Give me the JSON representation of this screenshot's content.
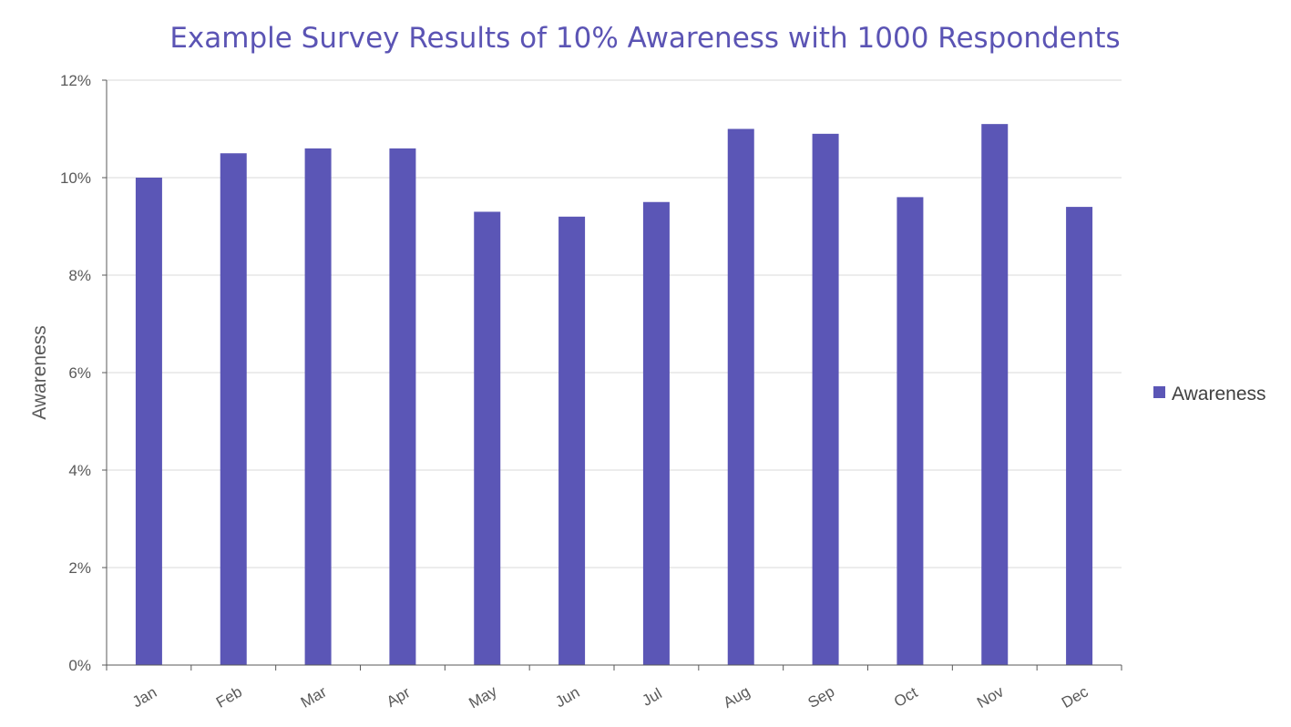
{
  "chart_data": {
    "type": "bar",
    "title": "Example Survey Results of 10% Awareness with 1000 Respondents",
    "xlabel": "",
    "ylabel": "Awareness",
    "categories": [
      "Jan",
      "Feb",
      "Mar",
      "Apr",
      "May",
      "Jun",
      "Jul",
      "Aug",
      "Sep",
      "Oct",
      "Nov",
      "Dec"
    ],
    "series": [
      {
        "name": "Awareness",
        "color": "#5b56b6",
        "values": [
          10.0,
          10.5,
          10.6,
          10.6,
          9.3,
          9.2,
          9.5,
          11.0,
          10.9,
          9.6,
          11.1,
          9.4
        ]
      }
    ],
    "ylim": [
      0,
      12
    ],
    "y_ticks": [
      0,
      2,
      4,
      6,
      8,
      10,
      12
    ],
    "y_tick_labels": [
      "0%",
      "2%",
      "4%",
      "6%",
      "8%",
      "10%",
      "12%"
    ],
    "grid": true,
    "legend_position": "right",
    "colors": {
      "title": "#5b54b4",
      "gridline": "#d9d9d9",
      "axis": "#595959",
      "label": "#595959"
    }
  }
}
